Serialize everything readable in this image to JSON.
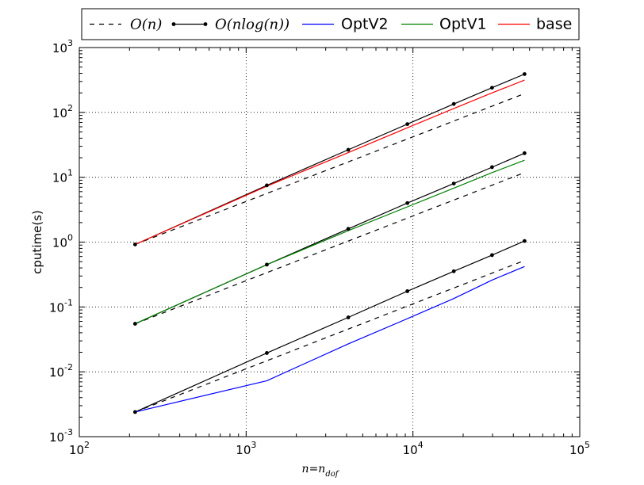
{
  "chart_data": {
    "type": "line",
    "xscale": "log",
    "yscale": "log",
    "xlim": [
      100,
      100000
    ],
    "ylim": [
      0.001,
      1000
    ],
    "xlabel": "n=n_dof",
    "ylabel": "cputime(s)",
    "grid": true,
    "grid_style": "dotted",
    "legend_position": "top",
    "x_ticks": [
      {
        "value": 100,
        "base": "10",
        "exp": "2"
      },
      {
        "value": 1000,
        "base": "10",
        "exp": "3"
      },
      {
        "value": 10000,
        "base": "10",
        "exp": "4"
      },
      {
        "value": 100000,
        "base": "10",
        "exp": "5"
      }
    ],
    "y_ticks": [
      {
        "value": 0.001,
        "base": "10",
        "exp": "-3"
      },
      {
        "value": 0.01,
        "base": "10",
        "exp": "-2"
      },
      {
        "value": 0.1,
        "base": "10",
        "exp": "-1"
      },
      {
        "value": 1,
        "base": "10",
        "exp": "0"
      },
      {
        "value": 10,
        "base": "10",
        "exp": "1"
      },
      {
        "value": 100,
        "base": "10",
        "exp": "2"
      },
      {
        "value": 1000,
        "base": "10",
        "exp": "3"
      }
    ],
    "legend": [
      {
        "label": "O(n)",
        "style": "dashed",
        "color": "#000000",
        "markers": false,
        "math": true
      },
      {
        "label": "O(nlog(n))",
        "style": "solid",
        "color": "#000000",
        "markers": true,
        "math": true
      },
      {
        "label": "OptV2",
        "style": "solid",
        "color": "#0000ff",
        "markers": false,
        "math": false
      },
      {
        "label": "OptV1",
        "style": "solid",
        "color": "#008000",
        "markers": false,
        "math": false
      },
      {
        "label": "base",
        "style": "solid",
        "color": "#ff0000",
        "markers": false,
        "math": false
      }
    ],
    "series": [
      {
        "name": "O(nlog(n))",
        "style": "solid",
        "color": "#000000",
        "markers": true,
        "x": [
          216,
          1331,
          4096,
          9261,
          17576,
          29791,
          46656
        ],
        "y": [
          0.92,
          7.5,
          26.5,
          66,
          135,
          240,
          390
        ]
      },
      {
        "name": "O(nlog(n))",
        "style": "solid",
        "color": "#000000",
        "markers": true,
        "x": [
          216,
          1331,
          4096,
          9261,
          17576,
          29791,
          46656
        ],
        "y": [
          0.055,
          0.45,
          1.6,
          4.0,
          8.0,
          14.3,
          23.5
        ]
      },
      {
        "name": "O(nlog(n))",
        "style": "solid",
        "color": "#000000",
        "markers": true,
        "x": [
          216,
          1331,
          4096,
          9261,
          17576,
          29791,
          46656
        ],
        "y": [
          0.0024,
          0.0195,
          0.069,
          0.175,
          0.355,
          0.63,
          1.04
        ]
      },
      {
        "name": "O(n)",
        "style": "dashed",
        "color": "#000000",
        "markers": false,
        "x": [
          216,
          46656
        ],
        "y": [
          0.92,
          195
        ]
      },
      {
        "name": "O(n)",
        "style": "dashed",
        "color": "#000000",
        "markers": false,
        "x": [
          216,
          46656
        ],
        "y": [
          0.055,
          11.8
        ]
      },
      {
        "name": "O(n)",
        "style": "dashed",
        "color": "#000000",
        "markers": false,
        "x": [
          216,
          46656
        ],
        "y": [
          0.0024,
          0.52
        ]
      },
      {
        "name": "base",
        "style": "solid",
        "color": "#ff0000",
        "markers": false,
        "x": [
          216,
          1331,
          4096,
          9261,
          17576,
          29791,
          46656
        ],
        "y": [
          0.92,
          7.3,
          24,
          58,
          115,
          200,
          315
        ]
      },
      {
        "name": "OptV1",
        "style": "solid",
        "color": "#008000",
        "markers": false,
        "x": [
          216,
          1331,
          4096,
          9261,
          17576,
          29791,
          46656
        ],
        "y": [
          0.055,
          0.45,
          1.5,
          3.5,
          6.8,
          11.8,
          18.3
        ]
      },
      {
        "name": "OptV2",
        "style": "solid",
        "color": "#0000ff",
        "markers": false,
        "x": [
          216,
          1331,
          4096,
          9261,
          17576,
          29791,
          46656
        ],
        "y": [
          0.0024,
          0.0073,
          0.027,
          0.066,
          0.135,
          0.26,
          0.42
        ]
      }
    ]
  }
}
